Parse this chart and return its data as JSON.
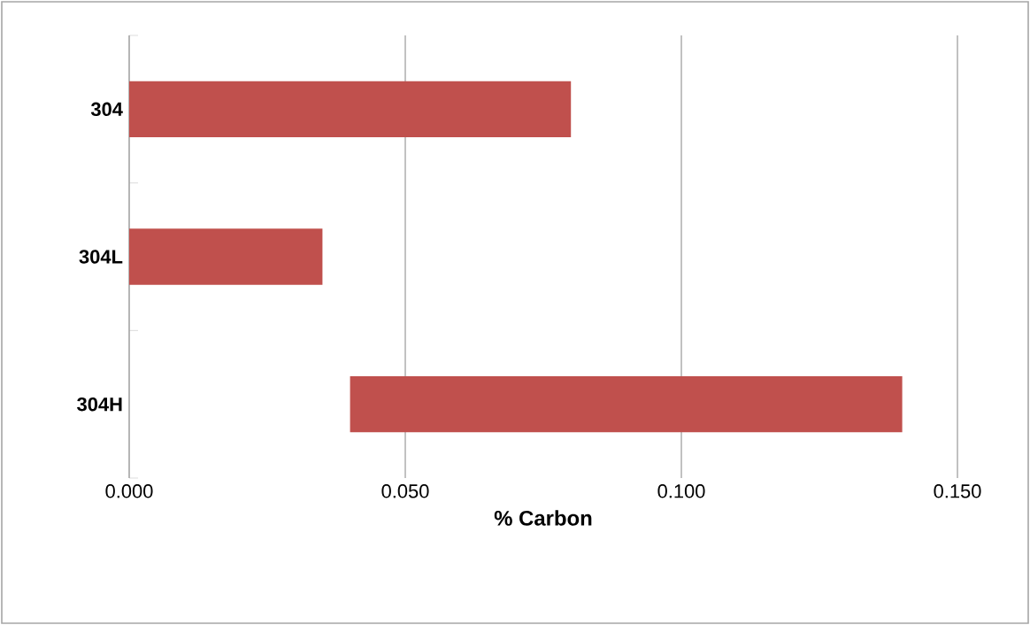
{
  "chart_data": {
    "type": "bar",
    "orientation": "horizontal",
    "xlabel": "% Carbon",
    "categories": [
      "304",
      "304L",
      "304H"
    ],
    "base": [
      0,
      0,
      0.04
    ],
    "values": [
      0.08,
      0.035,
      0.1
    ],
    "color": "#c0504d",
    "xlim": [
      0,
      0.15
    ],
    "xticks": [
      {
        "value": 0,
        "label": "0.000"
      },
      {
        "value": 0.05,
        "label": "0.050"
      },
      {
        "value": 0.1,
        "label": "0.100"
      },
      {
        "value": 0.15,
        "label": "0.150"
      }
    ],
    "grid": "x"
  }
}
